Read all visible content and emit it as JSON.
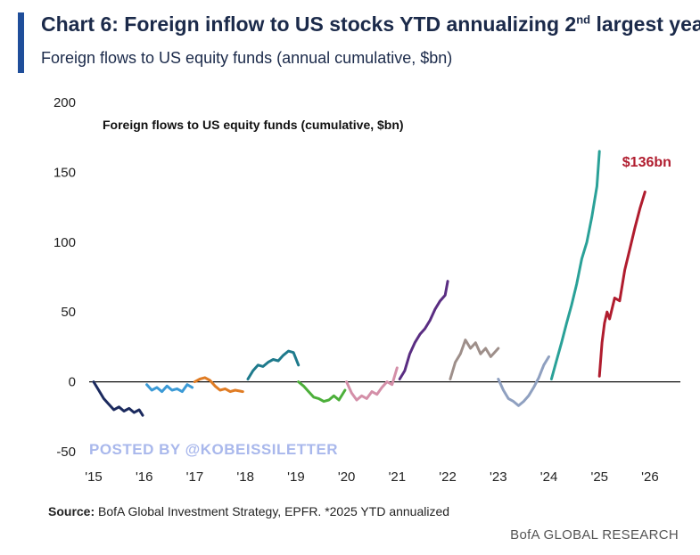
{
  "header": {
    "title_main": "Chart 6: Foreign inflow to US stocks YTD annualizing 2",
    "title_sup": "nd",
    "title_tail": " largest year",
    "subtitle": "Foreign flows to US equity funds (annual cumulative, $bn)"
  },
  "footer": {
    "source_label": "Source:",
    "source_text": " BofA Global Investment Strategy, EPFR. *2025 YTD annualized",
    "brand": "BofA GLOBAL RESEARCH"
  },
  "watermark": "POSTED BY @KOBEISSILETTER",
  "chart_data": {
    "type": "line",
    "title": "Foreign flows to US equity funds (cumulative, $bn)",
    "xlabel": "",
    "ylabel": "",
    "ylim": [
      -50,
      200
    ],
    "yticks": [
      200,
      150,
      100,
      50,
      0,
      -50
    ],
    "xlim": [
      2015,
      2026.6
    ],
    "xticks": [
      2015,
      2016,
      2017,
      2018,
      2019,
      2020,
      2021,
      2022,
      2023,
      2024,
      2025,
      2026
    ],
    "xtick_labels": [
      "'15",
      "'16",
      "'17",
      "'18",
      "'19",
      "'20",
      "'21",
      "'22",
      "'23",
      "'24",
      "'25",
      "'26"
    ],
    "annotation": {
      "text": "$136bn",
      "x": 2025.45,
      "y": 154,
      "color": "#b01c2e"
    },
    "series": [
      {
        "name": "2015",
        "color": "#1b2a5e",
        "x": [
          2015.0,
          2015.1,
          2015.2,
          2015.3,
          2015.4,
          2015.5,
          2015.6,
          2015.7,
          2015.8,
          2015.9,
          2015.97
        ],
        "y": [
          0,
          -6,
          -12,
          -16,
          -20,
          -18,
          -21,
          -19,
          -22,
          -20,
          -24
        ]
      },
      {
        "name": "2016",
        "color": "#3b9ad6",
        "x": [
          2016.05,
          2016.15,
          2016.25,
          2016.35,
          2016.45,
          2016.55,
          2016.65,
          2016.75,
          2016.85,
          2016.95
        ],
        "y": [
          -2,
          -6,
          -4,
          -7,
          -3,
          -6,
          -5,
          -7,
          -2,
          -4
        ]
      },
      {
        "name": "2017",
        "color": "#e07c24",
        "x": [
          2017.0,
          2017.1,
          2017.2,
          2017.3,
          2017.4,
          2017.5,
          2017.6,
          2017.7,
          2017.8,
          2017.95
        ],
        "y": [
          0,
          2,
          3,
          1,
          -3,
          -6,
          -5,
          -7,
          -6,
          -7
        ]
      },
      {
        "name": "2018",
        "color": "#1e7a8c",
        "x": [
          2018.05,
          2018.15,
          2018.25,
          2018.35,
          2018.45,
          2018.55,
          2018.65,
          2018.75,
          2018.85,
          2018.95,
          2019.05
        ],
        "y": [
          2,
          8,
          12,
          11,
          14,
          16,
          15,
          19,
          22,
          21,
          12
        ]
      },
      {
        "name": "2019",
        "color": "#4caf3a",
        "x": [
          2019.05,
          2019.15,
          2019.25,
          2019.35,
          2019.45,
          2019.55,
          2019.65,
          2019.75,
          2019.85,
          2019.97
        ],
        "y": [
          0,
          -3,
          -7,
          -11,
          -12,
          -14,
          -13,
          -10,
          -13,
          -6
        ]
      },
      {
        "name": "2020",
        "color": "#d48fa8",
        "x": [
          2020.0,
          2020.1,
          2020.2,
          2020.3,
          2020.4,
          2020.5,
          2020.6,
          2020.7,
          2020.8,
          2020.9,
          2021.0
        ],
        "y": [
          0,
          -8,
          -13,
          -10,
          -12,
          -7,
          -9,
          -4,
          0,
          -2,
          10
        ]
      },
      {
        "name": "2021",
        "color": "#5a2d82",
        "x": [
          2021.05,
          2021.15,
          2021.25,
          2021.35,
          2021.45,
          2021.55,
          2021.65,
          2021.75,
          2021.85,
          2021.95,
          2022.0
        ],
        "y": [
          2,
          8,
          20,
          28,
          34,
          38,
          44,
          52,
          58,
          62,
          72
        ]
      },
      {
        "name": "2022",
        "color": "#9e8f8a",
        "x": [
          2022.05,
          2022.15,
          2022.25,
          2022.35,
          2022.45,
          2022.55,
          2022.65,
          2022.75,
          2022.85,
          2022.95,
          2023.0
        ],
        "y": [
          2,
          14,
          20,
          30,
          24,
          28,
          20,
          24,
          18,
          22,
          24
        ]
      },
      {
        "name": "2023",
        "color": "#8fa0c0",
        "x": [
          2023.0,
          2023.1,
          2023.2,
          2023.3,
          2023.4,
          2023.5,
          2023.6,
          2023.7,
          2023.8,
          2023.9,
          2024.0
        ],
        "y": [
          2,
          -6,
          -12,
          -14,
          -17,
          -14,
          -10,
          -4,
          3,
          12,
          18
        ]
      },
      {
        "name": "2024",
        "color": "#2aa198",
        "x": [
          2024.05,
          2024.15,
          2024.25,
          2024.35,
          2024.45,
          2024.55,
          2024.65,
          2024.75,
          2024.85,
          2024.95,
          2025.0
        ],
        "y": [
          2,
          15,
          28,
          42,
          55,
          70,
          88,
          100,
          118,
          140,
          165
        ]
      },
      {
        "name": "2025",
        "color": "#b01c2e",
        "x": [
          2025.0,
          2025.05,
          2025.1,
          2025.15,
          2025.2,
          2025.3,
          2025.4,
          2025.5,
          2025.6,
          2025.7,
          2025.8,
          2025.9
        ],
        "y": [
          4,
          28,
          42,
          50,
          45,
          60,
          58,
          80,
          95,
          110,
          124,
          136
        ]
      }
    ]
  }
}
